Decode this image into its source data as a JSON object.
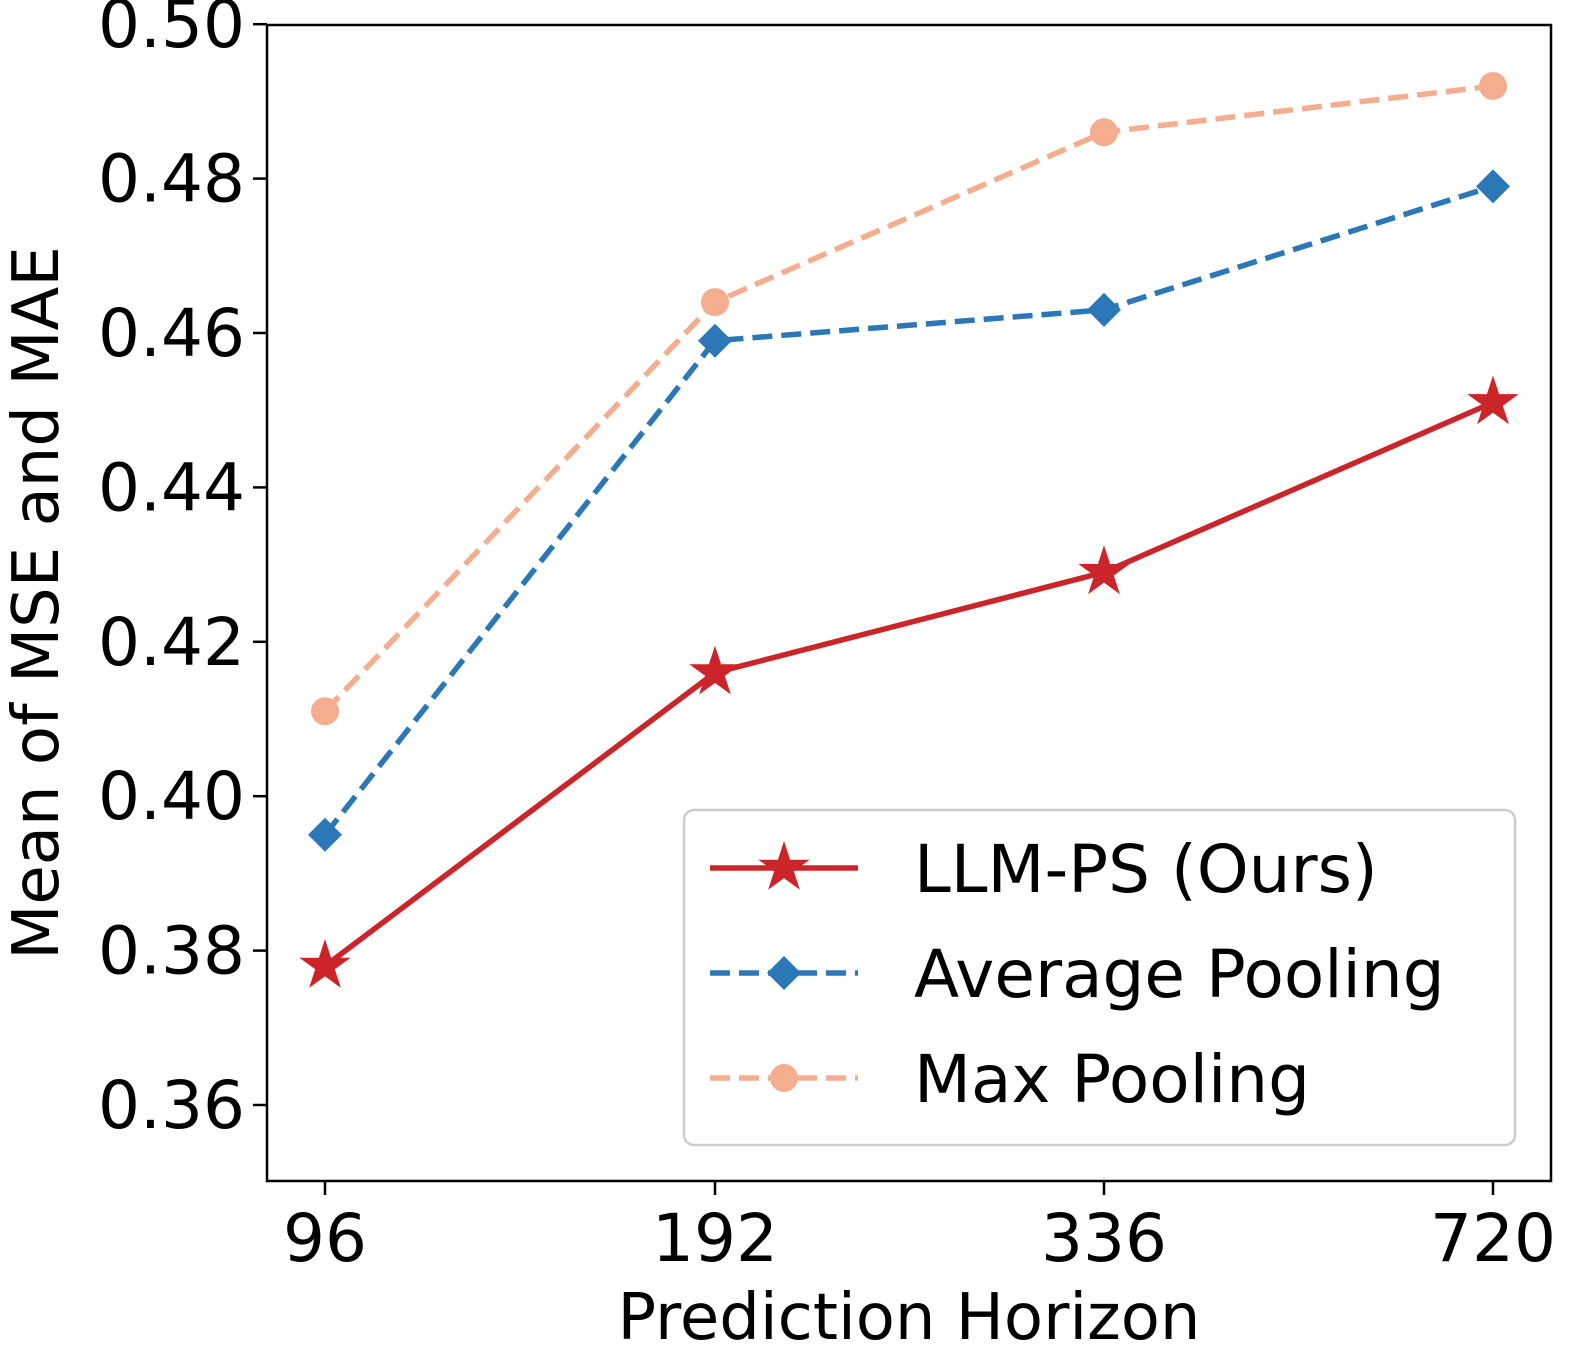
{
  "chart_data": {
    "type": "line",
    "title": "",
    "xlabel": "Prediction Horizon",
    "ylabel": "Mean of MSE and MAE",
    "categories": [
      "96",
      "192",
      "336",
      "720"
    ],
    "ylim": [
      0.35,
      0.5
    ],
    "yticks": [
      "0.36",
      "0.38",
      "0.40",
      "0.42",
      "0.44",
      "0.46",
      "0.48",
      "0.50"
    ],
    "ytick_values": [
      0.36,
      0.38,
      0.4,
      0.42,
      0.44,
      0.46,
      0.48,
      0.5
    ],
    "grid": false,
    "legend_position": "lower-right",
    "series": [
      {
        "name": "LLM-PS (Ours)",
        "values": [
          0.378,
          0.416,
          0.429,
          0.451
        ],
        "color": "#cc2529",
        "line_style": "solid",
        "marker": "star"
      },
      {
        "name": "Average Pooling",
        "values": [
          0.395,
          0.459,
          0.463,
          0.479
        ],
        "color": "#2b77b8",
        "line_style": "dashed",
        "marker": "diamond"
      },
      {
        "name": "Max Pooling",
        "values": [
          0.411,
          0.464,
          0.486,
          0.492
        ],
        "color": "#f4ad8f",
        "line_style": "dashed",
        "marker": "circle"
      }
    ]
  }
}
